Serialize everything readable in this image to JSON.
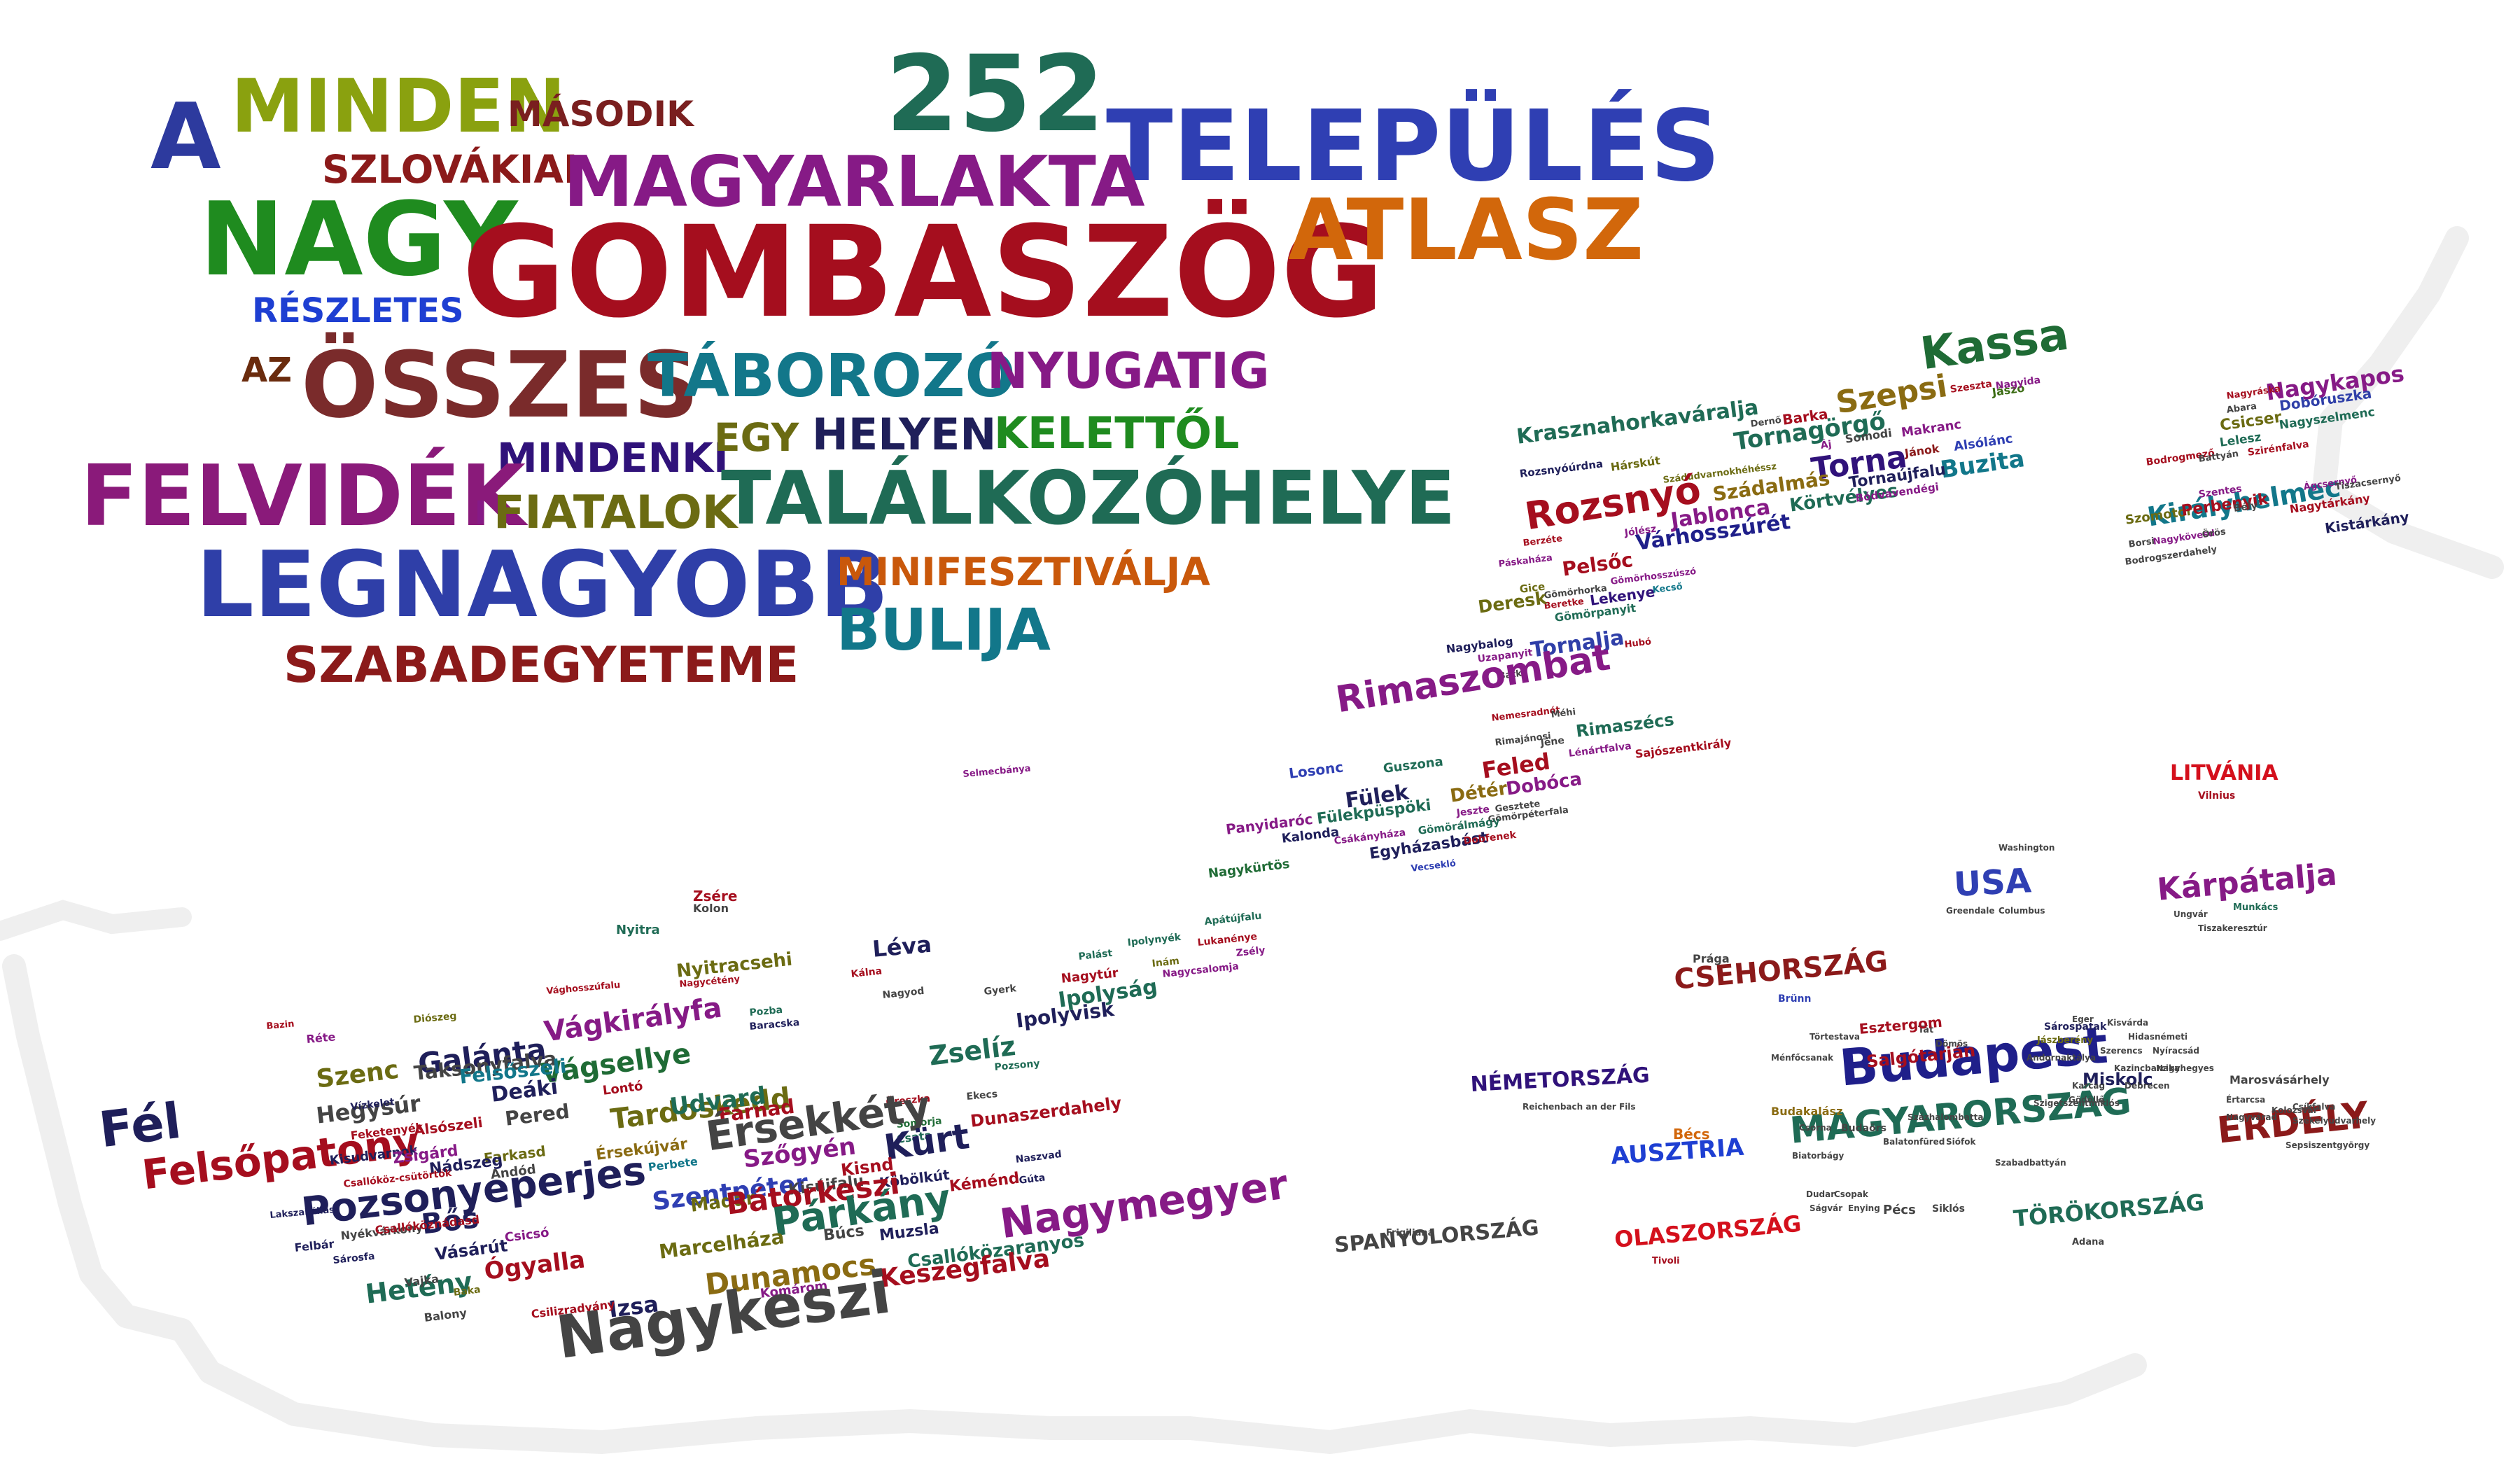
{
  "title_words": [
    {
      "t": "A",
      "c": "#2d3a9e"
    },
    {
      "t": "MINDEN",
      "c": "#8aa10f"
    },
    {
      "t": "MÁSODIK",
      "c": "#7a1f1f"
    },
    {
      "t": "252",
      "c": "#1f6b55"
    },
    {
      "t": "TELEPÜLÉS",
      "c": "#2f3fb3"
    },
    {
      "t": "SZLOVÁKIAI",
      "c": "#8b1a1a"
    },
    {
      "t": "MAGYARLAKTA",
      "c": "#861a86"
    },
    {
      "t": "NAGY",
      "c": "#1f8b1f"
    },
    {
      "t": "GOMBASZÖG",
      "c": "#a50e1e"
    },
    {
      "t": "ATLASZ",
      "c": "#d2670b"
    },
    {
      "t": "RÉSZLETES",
      "c": "#1e3fd2"
    },
    {
      "t": "AZ",
      "c": "#6a2b0d"
    },
    {
      "t": "ÖSSZES",
      "c": "#7a2b2b"
    },
    {
      "t": "TÁBOROZÓ",
      "c": "#12778a"
    },
    {
      "t": "NYUGATIG",
      "c": "#861a86"
    },
    {
      "t": "MINDENKI",
      "c": "#30127a"
    },
    {
      "t": "EGY",
      "c": "#6b6b12"
    },
    {
      "t": "HELYEN",
      "c": "#1f1f5a"
    },
    {
      "t": "KELETTŐL",
      "c": "#1f8b1f"
    },
    {
      "t": "FELVIDÉK",
      "c": "#8a1a7a"
    },
    {
      "t": "I",
      "c": "#861a86"
    },
    {
      "t": "FIATALOK",
      "c": "#6b6b12"
    },
    {
      "t": "TALÁLKOZÓHELYE",
      "c": "#1f6b55"
    },
    {
      "t": "LEGNAGYOBB",
      "c": "#2f3fa8"
    },
    {
      "t": "MINIFESZTIVÁLJA",
      "c": "#c9580b"
    },
    {
      "t": "BULIJA",
      "c": "#12778a"
    },
    {
      "t": "SZABADEGYETEME",
      "c": "#8b1a1a"
    }
  ],
  "region_words": [
    {
      "t": "Kassa",
      "c": "#1f6b35"
    },
    {
      "t": "Jászó",
      "c": "#3a6b12"
    },
    {
      "t": "Szeszta",
      "c": "#a50e1e"
    },
    {
      "t": "Nagyida",
      "c": "#861a86"
    },
    {
      "t": "Krasznahorkaváralja",
      "c": "#1f6b55"
    },
    {
      "t": "Dernő",
      "c": "#444444"
    },
    {
      "t": "Barka",
      "c": "#a50e1e"
    },
    {
      "t": "Szepsi",
      "c": "#8a6b12"
    },
    {
      "t": "Makranc",
      "c": "#861a86"
    },
    {
      "t": "Tornagörgő",
      "c": "#1f6b55"
    },
    {
      "t": "Somodi",
      "c": "#444444"
    },
    {
      "t": "Áj",
      "c": "#861a86"
    },
    {
      "t": "Jánok",
      "c": "#8b1a1a"
    },
    {
      "t": "Alsólánc",
      "c": "#2f3fb3"
    },
    {
      "t": "Rozsnyóúrdna",
      "c": "#1f1f5a"
    },
    {
      "t": "Hárskút",
      "c": "#6b6b12"
    },
    {
      "t": "Torna",
      "c": "#30127a"
    },
    {
      "t": "Buzita",
      "c": "#12778a"
    },
    {
      "t": "Szádudvarnokhéhéssz",
      "c": "#6b6b12"
    },
    {
      "t": "Tornaújfalu",
      "c": "#1f1f5a"
    },
    {
      "t": "Szádalmás",
      "c": "#8a6b12"
    },
    {
      "t": "Rozsnyó",
      "c": "#a50e1e"
    },
    {
      "t": "Körtvélyes",
      "c": "#1f6b55"
    },
    {
      "t": "Bódvavendégi",
      "c": "#861a86"
    },
    {
      "t": "Jablonca",
      "c": "#861a86"
    },
    {
      "t": "Várhosszúrét",
      "c": "#1f1f8a"
    },
    {
      "t": "Berzéte",
      "c": "#a50e1e"
    },
    {
      "t": "Jólész",
      "c": "#861a86"
    },
    {
      "t": "Páskaháza",
      "c": "#861a86"
    },
    {
      "t": "Pelsőc",
      "c": "#a50e1e"
    },
    {
      "t": "Gömörhorka",
      "c": "#444444"
    },
    {
      "t": "Gömörhosszúszó",
      "c": "#861a86"
    },
    {
      "t": "Gice",
      "c": "#6b6b12"
    },
    {
      "t": "Beretke",
      "c": "#a50e1e"
    },
    {
      "t": "Lekenye",
      "c": "#30127a"
    },
    {
      "t": "Kecső",
      "c": "#12778a"
    },
    {
      "t": "Deresk",
      "c": "#6b6b12"
    },
    {
      "t": "Gömörpanyit",
      "c": "#1f6b55"
    },
    {
      "t": "Nagybalog",
      "c": "#1f1f5a"
    },
    {
      "t": "Hubó",
      "c": "#a50e1e"
    },
    {
      "t": "Uzapanyit",
      "c": "#861a86"
    },
    {
      "t": "Tornalja",
      "c": "#2f3fa8"
    },
    {
      "t": "Bátka",
      "c": "#444444"
    },
    {
      "t": "Rimaszombat",
      "c": "#861a86"
    },
    {
      "t": "Nemesradnót",
      "c": "#a50e1e"
    },
    {
      "t": "Méhi",
      "c": "#444444"
    },
    {
      "t": "Rimajánosi",
      "c": "#444444"
    },
    {
      "t": "Jéne",
      "c": "#444444"
    },
    {
      "t": "Rimaszécs",
      "c": "#1f6b55"
    },
    {
      "t": "Lénártfalva",
      "c": "#861a86"
    },
    {
      "t": "Sajószentkirály",
      "c": "#a50e1e"
    },
    {
      "t": "Losonc",
      "c": "#2f3fb3"
    },
    {
      "t": "Guszona",
      "c": "#1f6b55"
    },
    {
      "t": "Feled",
      "c": "#a50e1e"
    },
    {
      "t": "Fülek",
      "c": "#1f1f5a"
    },
    {
      "t": "Dobóca",
      "c": "#861a86"
    },
    {
      "t": "Fülekpüspöki",
      "c": "#1f6b55"
    },
    {
      "t": "Détér",
      "c": "#8a6b12"
    },
    {
      "t": "Jeszte",
      "c": "#861a86"
    },
    {
      "t": "Gesztete",
      "c": "#444444"
    },
    {
      "t": "Panyidaróc",
      "c": "#861a86"
    },
    {
      "t": "Gömörpéterfala",
      "c": "#444444"
    },
    {
      "t": "Gömörálmágy",
      "c": "#1f6b55"
    },
    {
      "t": "Kalonda",
      "c": "#1f1f5a"
    },
    {
      "t": "Csákányháza",
      "c": "#861a86"
    },
    {
      "t": "Egyházasbást",
      "c": "#1f1f5a"
    },
    {
      "t": "Dobfenek",
      "c": "#a50e1e"
    },
    {
      "t": "Vecsekló",
      "c": "#2f3fb3"
    },
    {
      "t": "Nagykürtös",
      "c": "#1f6b35"
    },
    {
      "t": "Nagykapos",
      "c": "#861a86"
    },
    {
      "t": "Nagyráska",
      "c": "#a50e1e"
    },
    {
      "t": "Abara",
      "c": "#444444"
    },
    {
      "t": "Dobóruszka",
      "c": "#2f3fa8"
    },
    {
      "t": "Csicser",
      "c": "#6b6b12"
    },
    {
      "t": "Nagyszelmenc",
      "c": "#1f6b55"
    },
    {
      "t": "Lelesz",
      "c": "#1f6b55"
    },
    {
      "t": "Bodrogmező",
      "c": "#a50e1e"
    },
    {
      "t": "Battyán",
      "c": "#444444"
    },
    {
      "t": "Szirénfalva",
      "c": "#a50e1e"
    },
    {
      "t": "Királyhelmec",
      "c": "#12778a"
    },
    {
      "t": "Szentes",
      "c": "#861a86"
    },
    {
      "t": "Ágcsernyő",
      "c": "#861a86"
    },
    {
      "t": "Tiszacsernyő",
      "c": "#444444"
    },
    {
      "t": "Szomotor",
      "c": "#6b6b12"
    },
    {
      "t": "Perbenyik",
      "c": "#a50e1e"
    },
    {
      "t": "Bély",
      "c": "#444444"
    },
    {
      "t": "Nagytárkány",
      "c": "#a50e1e"
    },
    {
      "t": "Borsi",
      "c": "#444444"
    },
    {
      "t": "Nagykövesd",
      "c": "#861a86"
    },
    {
      "t": "Örös",
      "c": "#444444"
    },
    {
      "t": "Kistárkány",
      "c": "#1f1f5a"
    },
    {
      "t": "Bodrogszerdahely",
      "c": "#444444"
    },
    {
      "t": "Selmecbánya",
      "c": "#861a86"
    },
    {
      "t": "Zsére",
      "c": "#a50e1e"
    },
    {
      "t": "Kolon",
      "c": "#444444"
    },
    {
      "t": "Nyitra",
      "c": "#1f6b55"
    },
    {
      "t": "Léva",
      "c": "#1f1f5a"
    },
    {
      "t": "Palást",
      "c": "#1f6b55"
    },
    {
      "t": "Ipolynyék",
      "c": "#1f6b55"
    },
    {
      "t": "Apátújfalu",
      "c": "#1f6b55"
    },
    {
      "t": "Lukanénye",
      "c": "#a50e1e"
    },
    {
      "t": "Nyitracsehi",
      "c": "#6b6b12"
    },
    {
      "t": "Kálna",
      "c": "#a50e1e"
    },
    {
      "t": "Inám",
      "c": "#6b6b12"
    },
    {
      "t": "Zsély",
      "c": "#861a86"
    },
    {
      "t": "Vághosszúfalu",
      "c": "#a50e1e"
    },
    {
      "t": "Nagycétény",
      "c": "#a50e1e"
    },
    {
      "t": "Nagytúr",
      "c": "#a50e1e"
    },
    {
      "t": "Nagyod",
      "c": "#444444"
    },
    {
      "t": "Nagycsalomja",
      "c": "#861a86"
    },
    {
      "t": "Ipolyság",
      "c": "#1f6b55"
    },
    {
      "t": "Gyerk",
      "c": "#444444"
    },
    {
      "t": "Ipolyvisk",
      "c": "#1f1f5a"
    },
    {
      "t": "Bazin",
      "c": "#a50e1e"
    },
    {
      "t": "Diószeg",
      "c": "#6b6b12"
    },
    {
      "t": "Vágkirályfa",
      "c": "#861a86"
    },
    {
      "t": "Pozba",
      "c": "#1f6b55"
    },
    {
      "t": "Baracska",
      "c": "#1f1f5a"
    },
    {
      "t": "Galánta",
      "c": "#1f1f5a"
    },
    {
      "t": "Vágsellye",
      "c": "#1f6b35"
    },
    {
      "t": "Zselíz",
      "c": "#1f6b55"
    },
    {
      "t": "Réte",
      "c": "#861a86"
    },
    {
      "t": "Szenc",
      "c": "#6b6b12"
    },
    {
      "t": "Taksonyfalva",
      "c": "#444444"
    },
    {
      "t": "Felsőszeli",
      "c": "#12778a"
    },
    {
      "t": "Deáki",
      "c": "#1f1f5a"
    },
    {
      "t": "Lontó",
      "c": "#a50e1e"
    },
    {
      "t": "Pozsony",
      "c": "#1f6b55"
    },
    {
      "t": "Fél",
      "c": "#1f1f5a"
    },
    {
      "t": "Hegysúr",
      "c": "#444444"
    },
    {
      "t": "Vízkelet",
      "c": "#1f1f5a"
    },
    {
      "t": "Feketenyék",
      "c": "#a50e1e"
    },
    {
      "t": "Alsószeli",
      "c": "#a50e1e"
    },
    {
      "t": "Pered",
      "c": "#444444"
    },
    {
      "t": "Tardoskedd",
      "c": "#6b6b12"
    },
    {
      "t": "Udvard",
      "c": "#1f6b55"
    },
    {
      "t": "Farnad",
      "c": "#a50e1e"
    },
    {
      "t": "Öreszka",
      "c": "#a50e1e"
    },
    {
      "t": "Ekecs",
      "c": "#444444"
    },
    {
      "t": "Somorja",
      "c": "#1f6b35"
    },
    {
      "t": "Felsőpatony",
      "c": "#a50e1e"
    },
    {
      "t": "Kisudvarnok",
      "c": "#1f1f5a"
    },
    {
      "t": "Zsigárd",
      "c": "#861a86"
    },
    {
      "t": "Farkasd",
      "c": "#6b6b12"
    },
    {
      "t": "Érsekújvár",
      "c": "#8a6b12"
    },
    {
      "t": "Érsekkéty",
      "c": "#444444"
    },
    {
      "t": "Csata",
      "c": "#1f6b55"
    },
    {
      "t": "Dunaszerdahely",
      "c": "#a50e1e"
    },
    {
      "t": "Pozsonyeperjes",
      "c": "#1f1f5a"
    },
    {
      "t": "Nádszeg",
      "c": "#1f1f5a"
    },
    {
      "t": "Andód",
      "c": "#444444"
    },
    {
      "t": "Perbete",
      "c": "#12778a"
    },
    {
      "t": "Szőgyén",
      "c": "#861a86"
    },
    {
      "t": "Kürt",
      "c": "#1f1f5a"
    },
    {
      "t": "Kisnd",
      "c": "#a50e1e"
    },
    {
      "t": "Naszvad",
      "c": "#1f1f5a"
    },
    {
      "t": "Szentpéter",
      "c": "#2f3fb3"
    },
    {
      "t": "Kisújfalu",
      "c": "#444444"
    },
    {
      "t": "Köbölkút",
      "c": "#1f1f5a"
    },
    {
      "t": "Kéménd",
      "c": "#a50e1e"
    },
    {
      "t": "Gúta",
      "c": "#1f1f5a"
    },
    {
      "t": "Madar",
      "c": "#6b6b12"
    },
    {
      "t": "Bátorkeszi",
      "c": "#a50e1e"
    },
    {
      "t": "Párkány",
      "c": "#1f6b55"
    },
    {
      "t": "Nagymegyer",
      "c": "#861a86"
    },
    {
      "t": "Bős",
      "c": "#1f1f5a"
    },
    {
      "t": "Vásárút",
      "c": "#1f1f5a"
    },
    {
      "t": "Csicsó",
      "c": "#861a86"
    },
    {
      "t": "Ógyalla",
      "c": "#a50e1e"
    },
    {
      "t": "Marcelháza",
      "c": "#6b6b12"
    },
    {
      "t": "Búcs",
      "c": "#444444"
    },
    {
      "t": "Muzsla",
      "c": "#1f1f5a"
    },
    {
      "t": "Csallóközaranyos",
      "c": "#1f6b55"
    },
    {
      "t": "Hetény",
      "c": "#1f6b55"
    },
    {
      "t": "Dunamocs",
      "c": "#8a6b12"
    },
    {
      "t": "Keszegfalva",
      "c": "#a50e1e"
    },
    {
      "t": "Izsa",
      "c": "#1f1f5a"
    },
    {
      "t": "Komárom",
      "c": "#861a86"
    },
    {
      "t": "Nagykeszi",
      "c": "#444444"
    },
    {
      "t": "Csilizradvány",
      "c": "#a50e1e"
    },
    {
      "t": "Balony",
      "c": "#444444"
    },
    {
      "t": "Baka",
      "c": "#6b6b12"
    },
    {
      "t": "Vajka",
      "c": "#444444"
    },
    {
      "t": "Felbár",
      "c": "#1f1f5a"
    },
    {
      "t": "Nyékvárkony",
      "c": "#444444"
    },
    {
      "t": "Csallóköznádasd",
      "c": "#a50e1e"
    },
    {
      "t": "Sárosfa",
      "c": "#1f1f5a"
    },
    {
      "t": "Csallóköz-csütörtök",
      "c": "#a50e1e"
    },
    {
      "t": "Lakszakállas",
      "c": "#1f1f5a"
    }
  ],
  "extra_words": [
    {
      "t": "LITVÁNIA",
      "c": "#d4101c"
    },
    {
      "t": "Vilnius",
      "c": "#a50e1e"
    },
    {
      "t": "USA",
      "c": "#2f3fb3"
    },
    {
      "t": "Washington",
      "c": "#444444"
    },
    {
      "t": "Greendale",
      "c": "#444444"
    },
    {
      "t": "Columbus",
      "c": "#444444"
    },
    {
      "t": "Kárpátalja",
      "c": "#861a86"
    },
    {
      "t": "Ungvár",
      "c": "#444444"
    },
    {
      "t": "Munkács",
      "c": "#1f6b55"
    },
    {
      "t": "Tiszakeresztúr",
      "c": "#444444"
    },
    {
      "t": "Prága",
      "c": "#444444"
    },
    {
      "t": "CSEHORSZÁG",
      "c": "#8b1a1a"
    },
    {
      "t": "Brünn",
      "c": "#2f3fb3"
    },
    {
      "t": "NÉMETORSZÁG",
      "c": "#30127a"
    },
    {
      "t": "Reichenbach an der Fils",
      "c": "#444444"
    },
    {
      "t": "Budapest",
      "c": "#1f1f8a"
    },
    {
      "t": "MAGYARORSZÁG",
      "c": "#1f6b55"
    },
    {
      "t": "Salgótarján",
      "c": "#a50e1e"
    },
    {
      "t": "Sárospatak",
      "c": "#1f1f5a"
    },
    {
      "t": "Kisvárda",
      "c": "#444444"
    },
    {
      "t": "Jászberény",
      "c": "#6b6b12"
    },
    {
      "t": "Hidasnémeti",
      "c": "#444444"
    },
    {
      "t": "Szerencs",
      "c": "#444444"
    },
    {
      "t": "Nyíracsád",
      "c": "#444444"
    },
    {
      "t": "Eger",
      "c": "#444444"
    },
    {
      "t": "Kazincbarcika",
      "c": "#444444"
    },
    {
      "t": "Nagyhegyes",
      "c": "#444444"
    },
    {
      "t": "Tát",
      "c": "#444444"
    },
    {
      "t": "Esztergom",
      "c": "#a50e1e"
    },
    {
      "t": "Miskolc",
      "c": "#1f1f5a"
    },
    {
      "t": "Törtestava",
      "c": "#444444"
    },
    {
      "t": "Ménfőcsanak",
      "c": "#444444"
    },
    {
      "t": "Dömös",
      "c": "#444444"
    },
    {
      "t": "Andornaktálya",
      "c": "#444444"
    },
    {
      "t": "Karcag",
      "c": "#444444"
    },
    {
      "t": "Debrecen",
      "c": "#444444"
    },
    {
      "t": "Gödöllő",
      "c": "#444444"
    },
    {
      "t": "Budakalász",
      "c": "#8a6b12"
    },
    {
      "t": "Szigetszentmiklós",
      "c": "#444444"
    },
    {
      "t": "Csorna",
      "c": "#444444"
    },
    {
      "t": "Biatorbágy",
      "c": "#444444"
    },
    {
      "t": "Budaörs",
      "c": "#444444"
    },
    {
      "t": "Százhalombatta",
      "c": "#444444"
    },
    {
      "t": "Balatonfüred",
      "c": "#444444"
    },
    {
      "t": "Siófok",
      "c": "#444444"
    },
    {
      "t": "Szabadbattyán",
      "c": "#444444"
    },
    {
      "t": "Dudar",
      "c": "#444444"
    },
    {
      "t": "Csopak",
      "c": "#444444"
    },
    {
      "t": "Ságvár",
      "c": "#444444"
    },
    {
      "t": "Enying",
      "c": "#444444"
    },
    {
      "t": "Pécs",
      "c": "#444444"
    },
    {
      "t": "Siklós",
      "c": "#444444"
    },
    {
      "t": "Bécs",
      "c": "#d2670b"
    },
    {
      "t": "AUSZTRIA",
      "c": "#1e3fd2"
    },
    {
      "t": "ERDÉLY",
      "c": "#8b1a1a"
    },
    {
      "t": "Értarcsa",
      "c": "#444444"
    },
    {
      "t": "Marosvásárhely",
      "c": "#444444"
    },
    {
      "t": "Nagyvárad",
      "c": "#444444"
    },
    {
      "t": "Kolozsvár",
      "c": "#444444"
    },
    {
      "t": "Csíkfalva",
      "c": "#444444"
    },
    {
      "t": "Székelyudvarhely",
      "c": "#444444"
    },
    {
      "t": "Sepsiszentgyörgy",
      "c": "#444444"
    },
    {
      "t": "Frigiliana",
      "c": "#444444"
    },
    {
      "t": "SPANYOLORSZÁG",
      "c": "#444444"
    },
    {
      "t": "OLASZORSZÁG",
      "c": "#d4101c"
    },
    {
      "t": "Tivoli",
      "c": "#a50e1e"
    },
    {
      "t": "TÖRÖKORSZÁG",
      "c": "#1f6b55"
    },
    {
      "t": "Adana",
      "c": "#444444"
    }
  ]
}
